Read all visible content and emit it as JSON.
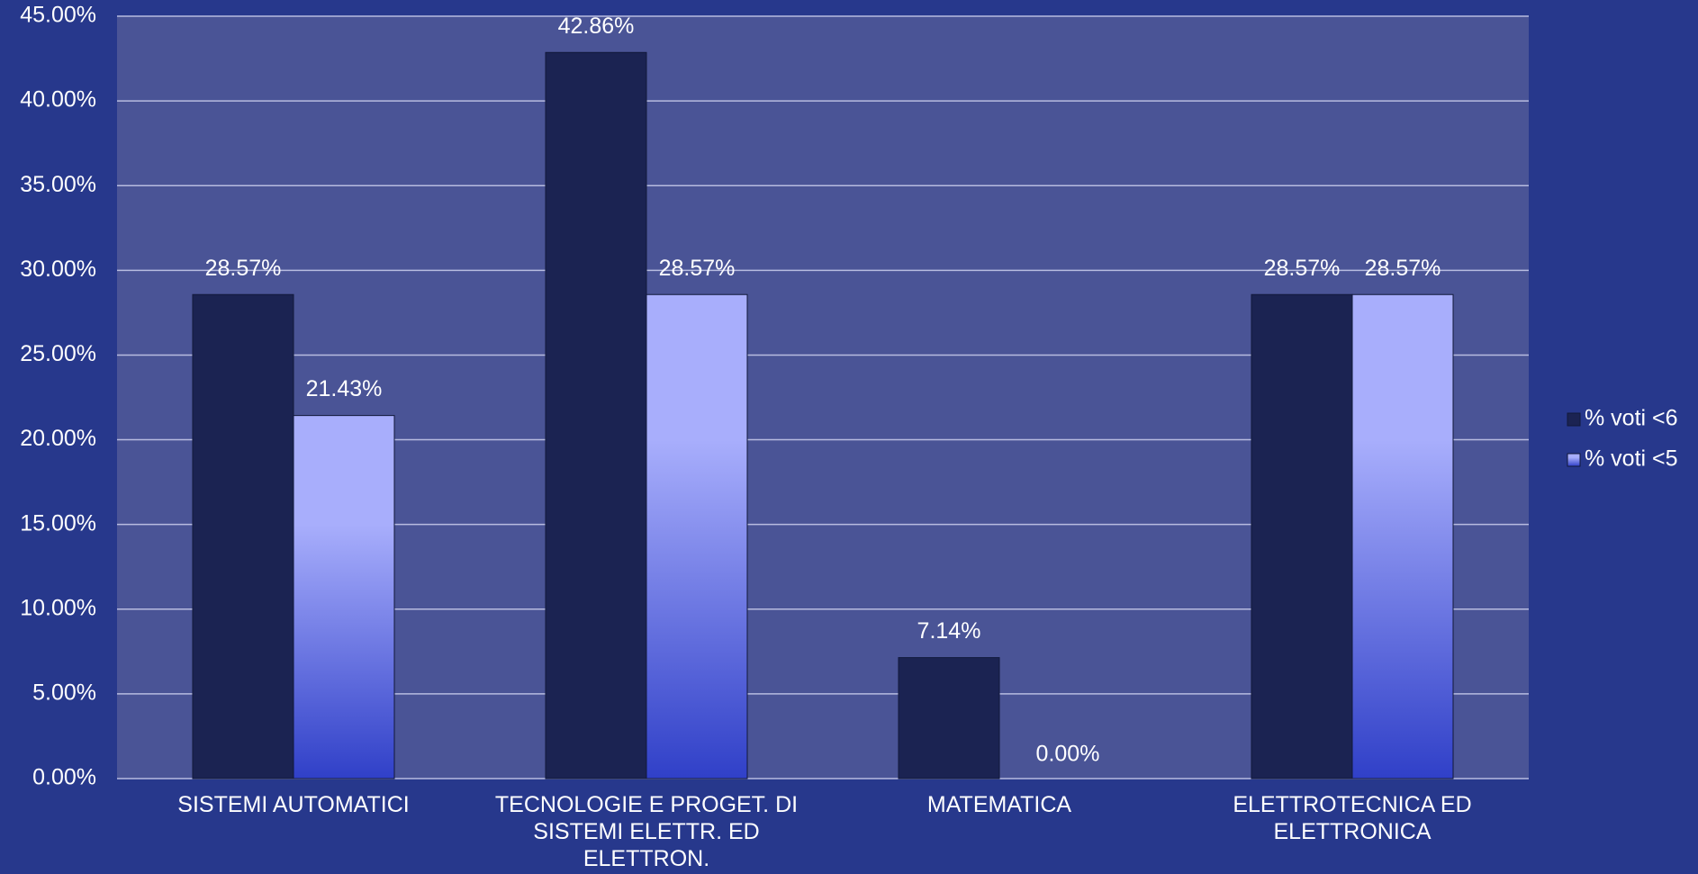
{
  "chart_data": {
    "type": "bar",
    "categories": [
      "SISTEMI AUTOMATICI",
      "TECNOLOGIE E PROGET. DI SISTEMI ELETTR. ED ELETTRON.",
      "MATEMATICA",
      "ELETTROTECNICA ED ELETTRONICA"
    ],
    "series": [
      {
        "name": "% voti <6",
        "color": "#1b2352",
        "values": [
          28.57,
          42.86,
          7.14,
          28.57
        ],
        "value_labels": [
          "28.57%",
          "42.86%",
          "7.14%",
          "28.57%"
        ]
      },
      {
        "name": "% voti <5",
        "color": "#a8aefc",
        "values": [
          21.43,
          28.57,
          0,
          28.57
        ],
        "value_labels": [
          "21.43%",
          "28.57%",
          "0.00%",
          "28.57%"
        ]
      }
    ],
    "ylim": [
      0,
      45
    ],
    "yticks": [
      {
        "value": 0,
        "label": "0.00%"
      },
      {
        "value": 5,
        "label": "5.00%"
      },
      {
        "value": 10,
        "label": "10.00%"
      },
      {
        "value": 15,
        "label": "15.00%"
      },
      {
        "value": 20,
        "label": "20.00%"
      },
      {
        "value": 25,
        "label": "25.00%"
      },
      {
        "value": 30,
        "label": "30.00%"
      },
      {
        "value": 35,
        "label": "35.00%"
      },
      {
        "value": 40,
        "label": "40.00%"
      },
      {
        "value": 45,
        "label": "45.00%"
      }
    ],
    "grid": true,
    "legend": "right"
  }
}
